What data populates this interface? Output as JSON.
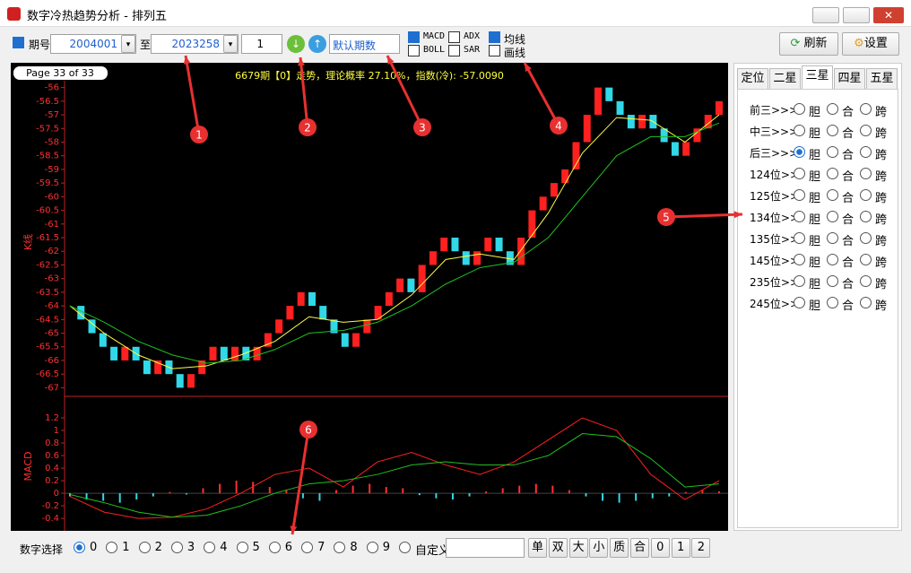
{
  "window": {
    "title": "数字冷热趋势分析 - 排列五"
  },
  "toolbar": {
    "period_label": "期号",
    "from": "2004001",
    "to_label": "至",
    "to": "2023258",
    "step": "1",
    "period_select": "默认期数",
    "indicators": [
      "MACD",
      "BOLL",
      "ADX",
      "SAR"
    ],
    "lines": [
      "均线",
      "画线"
    ],
    "refresh": "刷新",
    "settings": "设置"
  },
  "chart_data": [
    {
      "type": "renko",
      "page": "Page 33 of 33",
      "title": "6679期【0】走势，理论概率 27.10%，指数(冷): -57.0090",
      "y_label": "K线",
      "ylim": [
        -67.25,
        -55.75
      ],
      "yticks": [
        -67,
        -66.5,
        -66,
        -65.5,
        -65,
        -64.5,
        -64,
        -63.5,
        -63,
        -62.5,
        -62,
        -61.5,
        -61,
        -60.5,
        -60,
        -59.5,
        -59,
        -58.5,
        -58,
        -57.5,
        -57,
        -56.5,
        -56
      ],
      "up_color": "#ff2020",
      "down_color": "#30d8e8",
      "values": [
        -64.0,
        -64.5,
        -65.0,
        -65.5,
        -66.0,
        -65.5,
        -66.0,
        -66.5,
        -66.0,
        -66.5,
        -67.0,
        -66.5,
        -66.0,
        -65.5,
        -66.0,
        -65.5,
        -66.0,
        -65.5,
        -65.0,
        -64.5,
        -64.0,
        -63.5,
        -64.0,
        -64.5,
        -65.0,
        -65.5,
        -65.0,
        -64.5,
        -64.0,
        -63.5,
        -63.0,
        -63.5,
        -62.5,
        -62.0,
        -61.5,
        -62.0,
        -62.5,
        -62.0,
        -61.5,
        -62.0,
        -62.5,
        -61.5,
        -60.5,
        -60.0,
        -59.5,
        -59.0,
        -58.0,
        -57.0,
        -56.0,
        -56.5,
        -57.0,
        -57.5,
        -57.0,
        -57.5,
        -58.0,
        -58.5,
        -58.0,
        -57.5,
        -57.0,
        -56.5
      ],
      "ma_lines": [
        {
          "color": "#ffff40",
          "values": [
            -64.0,
            -65.0,
            -65.8,
            -66.3,
            -66.2,
            -65.8,
            -65.3,
            -64.4,
            -64.6,
            -64.5,
            -63.6,
            -62.3,
            -62.1,
            -62.3,
            -60.6,
            -58.4,
            -57.1,
            -57.2,
            -58.0,
            -57.0
          ]
        },
        {
          "color": "#20c020",
          "values": [
            -64.0,
            -64.6,
            -65.3,
            -65.8,
            -66.1,
            -66.0,
            -65.6,
            -65.0,
            -64.9,
            -64.6,
            -64.0,
            -63.2,
            -62.6,
            -62.4,
            -61.5,
            -60.0,
            -58.5,
            -57.8,
            -57.8,
            -57.3
          ]
        }
      ]
    },
    {
      "type": "macd",
      "y_label": "MACD",
      "ylim": [
        -0.57,
        1.5
      ],
      "yticks": [
        -0.4,
        -0.2,
        0,
        0.2,
        0.4,
        0.6,
        0.8,
        1,
        1.2
      ],
      "pos_color": "#ff3030",
      "neg_color": "#30d8e8",
      "bars": [
        -0.05,
        -0.1,
        -0.12,
        -0.15,
        -0.1,
        -0.05,
        0.02,
        -0.02,
        0.08,
        0.15,
        0.2,
        0.18,
        0.1,
        0.05,
        -0.08,
        -0.12,
        0.05,
        0.12,
        0.15,
        0.1,
        0.08,
        -0.03,
        -0.08,
        -0.1,
        -0.05,
        0.03,
        0.08,
        0.12,
        0.15,
        0.12,
        0.05,
        -0.05,
        -0.12,
        -0.15,
        -0.12,
        -0.08,
        -0.05,
        0.02,
        0.05,
        0.03
      ],
      "lines": [
        {
          "color": "#ff2020",
          "values": [
            -0.05,
            -0.3,
            -0.4,
            -0.38,
            -0.25,
            0,
            0.3,
            0.4,
            0.1,
            0.5,
            0.65,
            0.45,
            0.3,
            0.5,
            0.85,
            1.2,
            1.0,
            0.3,
            -0.1,
            0.2
          ]
        },
        {
          "color": "#20c020",
          "values": [
            -0.02,
            -0.15,
            -0.3,
            -0.38,
            -0.35,
            -0.2,
            0,
            0.15,
            0.2,
            0.3,
            0.45,
            0.5,
            0.45,
            0.45,
            0.6,
            0.95,
            0.9,
            0.55,
            0.1,
            0.15
          ]
        }
      ]
    }
  ],
  "side_panel": {
    "tabs": [
      "定位",
      "二星",
      "三星",
      "四星",
      "五星"
    ],
    "rows": [
      "前三>>>",
      "中三>>>",
      "后三>>>",
      "124位>>",
      "125位>>",
      "134位>>",
      "135位>>",
      "145位>>",
      "235位>>",
      "245位>>"
    ],
    "options": [
      "胆",
      "合",
      "跨"
    ]
  },
  "bottom_bar": {
    "label": "数字选择",
    "digits": [
      "0",
      "1",
      "2",
      "3",
      "4",
      "5",
      "6",
      "7",
      "8",
      "9",
      "自定义"
    ],
    "buttons": [
      "单",
      "双",
      "大",
      "小",
      "质",
      "合",
      "0",
      "1",
      "2"
    ]
  },
  "annotations": [
    "1",
    "2",
    "3",
    "4",
    "5",
    "6"
  ]
}
